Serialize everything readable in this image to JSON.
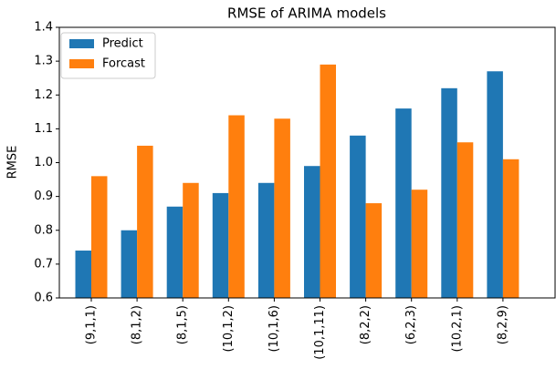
{
  "chart_data": {
    "type": "bar",
    "title": "RMSE of ARIMA models",
    "ylabel": "RMSE",
    "categories": [
      "(9,1,1)",
      "(8,1,2)",
      "(8,1,5)",
      "(10,1,2)",
      "(10,1,6)",
      "(10,1,11)",
      "(8,2,2)",
      "(6,2,3)",
      "(10,2,1)",
      "(8,2,9)"
    ],
    "series": [
      {
        "name": "Predict",
        "color": "#1f77b4",
        "values": [
          0.74,
          0.8,
          0.87,
          0.91,
          0.94,
          0.99,
          1.08,
          1.16,
          1.22,
          1.27
        ]
      },
      {
        "name": "Forcast",
        "color": "#ff7f0e",
        "values": [
          0.96,
          1.05,
          0.94,
          1.14,
          1.13,
          1.29,
          0.88,
          0.92,
          1.06,
          1.01
        ]
      }
    ],
    "ylim": [
      0.6,
      1.4
    ],
    "yticks": [
      0.6,
      0.7,
      0.8,
      0.9,
      {
        "value": 1,
        "label": "1.0"
      },
      1.1,
      1.2,
      1.3,
      1.4
    ],
    "legend": "upper left"
  }
}
